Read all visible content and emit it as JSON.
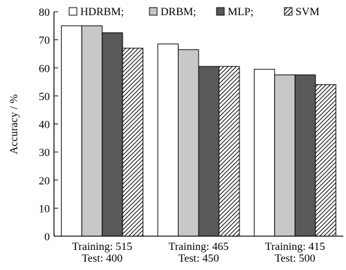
{
  "chart_data": {
    "type": "bar",
    "categories": [
      [
        "Training: 515",
        "Test: 400"
      ],
      [
        "Training: 465",
        "Test: 450"
      ],
      [
        "Training: 415",
        "Test: 500"
      ]
    ],
    "series": [
      {
        "name": "HDRBM;",
        "color": "#ffffff",
        "pattern": "none",
        "values": [
          75,
          68.5,
          59.5
        ]
      },
      {
        "name": "DRBM;",
        "color": "#c8c8c8",
        "pattern": "none",
        "values": [
          75,
          66.5,
          57.5
        ]
      },
      {
        "name": "MLP;",
        "color": "#595959",
        "pattern": "none",
        "values": [
          72.5,
          60.5,
          57.5
        ]
      },
      {
        "name": "SVM",
        "color": "#ffffff",
        "pattern": "diagonal-hatch",
        "values": [
          67,
          60.5,
          54
        ]
      }
    ],
    "ylabel": "Accuracy / %",
    "xlabel": "",
    "ylim": [
      0,
      80
    ],
    "yticks": [
      0,
      10,
      20,
      30,
      40,
      50,
      60,
      70,
      80
    ],
    "grid": false,
    "legend_position": "top"
  }
}
